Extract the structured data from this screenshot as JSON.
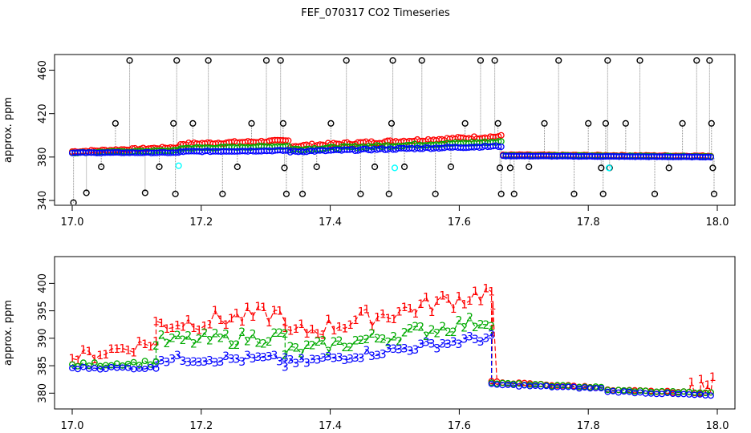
{
  "title": "FEF_070317  CO2 Timeseries",
  "colors": {
    "series1": "#ff0000",
    "series2": "#00aa00",
    "series3": "#0000ff",
    "outlier": "#000000",
    "flag": "#00ffff",
    "stick": "#888888"
  },
  "chart_data": [
    {
      "type": "scatter",
      "panel": "top",
      "title": "",
      "xlabel": "",
      "ylabel": "approx. ppm",
      "xlim": [
        17.0,
        18.0
      ],
      "ylim": [
        340,
        470
      ],
      "x_ticks": [
        "17.0",
        "17.2",
        "17.4",
        "17.6",
        "17.8",
        "18.0"
      ],
      "y_ticks": [
        "340",
        "380",
        "420",
        "460"
      ],
      "series": [
        {
          "name": "1",
          "color": "red",
          "segments": [
            {
              "x0": 17.0,
              "x1": 17.165,
              "y0": 385,
              "y1": 389,
              "jitter": 1.5
            },
            {
              "x0": 17.168,
              "x1": 17.335,
              "y0": 392,
              "y1": 395,
              "jitter": 2
            },
            {
              "x0": 17.338,
              "x1": 17.665,
              "y0": 390,
              "y1": 399,
              "jitter": 2.5
            },
            {
              "x0": 17.668,
              "x1": 17.99,
              "y0": 382,
              "y1": 381,
              "jitter": 0.8
            }
          ]
        },
        {
          "name": "2",
          "color": "green",
          "segments": [
            {
              "x0": 17.0,
              "x1": 17.165,
              "y0": 384,
              "y1": 386,
              "jitter": 1
            },
            {
              "x0": 17.168,
              "x1": 17.335,
              "y0": 388,
              "y1": 390,
              "jitter": 1.5
            },
            {
              "x0": 17.338,
              "x1": 17.665,
              "y0": 387,
              "y1": 394,
              "jitter": 2
            },
            {
              "x0": 17.668,
              "x1": 17.99,
              "y0": 381.5,
              "y1": 380.5,
              "jitter": 0.6
            }
          ]
        },
        {
          "name": "3",
          "color": "blue",
          "segments": [
            {
              "x0": 17.0,
              "x1": 17.165,
              "y0": 384,
              "y1": 384,
              "jitter": 0.6
            },
            {
              "x0": 17.168,
              "x1": 17.335,
              "y0": 385,
              "y1": 386,
              "jitter": 1
            },
            {
              "x0": 17.338,
              "x1": 17.665,
              "y0": 385,
              "y1": 390,
              "jitter": 1.5
            },
            {
              "x0": 17.668,
              "x1": 17.99,
              "y0": 381,
              "y1": 380,
              "jitter": 0.4
            }
          ]
        }
      ],
      "outliers": [
        [
          17.002,
          338
        ],
        [
          17.022,
          347
        ],
        [
          17.045,
          371
        ],
        [
          17.067,
          411
        ],
        [
          17.089,
          469
        ],
        [
          17.113,
          347
        ],
        [
          17.135,
          371
        ],
        [
          17.157,
          411
        ],
        [
          17.162,
          469
        ],
        [
          17.16,
          346
        ],
        [
          17.187,
          411
        ],
        [
          17.211,
          469
        ],
        [
          17.233,
          346
        ],
        [
          17.256,
          371
        ],
        [
          17.278,
          411
        ],
        [
          17.301,
          469
        ],
        [
          17.323,
          469
        ],
        [
          17.327,
          411
        ],
        [
          17.329,
          370
        ],
        [
          17.332,
          346
        ],
        [
          17.357,
          346
        ],
        [
          17.379,
          371
        ],
        [
          17.401,
          411
        ],
        [
          17.425,
          469
        ],
        [
          17.447,
          346
        ],
        [
          17.469,
          371
        ],
        [
          17.491,
          346
        ],
        [
          17.495,
          411
        ],
        [
          17.497,
          469
        ],
        [
          17.515,
          371
        ],
        [
          17.542,
          469
        ],
        [
          17.563,
          346
        ],
        [
          17.587,
          371
        ],
        [
          17.609,
          411
        ],
        [
          17.633,
          469
        ],
        [
          17.655,
          469
        ],
        [
          17.66,
          411
        ],
        [
          17.663,
          370
        ],
        [
          17.665,
          346
        ],
        [
          17.679,
          370
        ],
        [
          17.685,
          346
        ],
        [
          17.708,
          371
        ],
        [
          17.732,
          411
        ],
        [
          17.754,
          469
        ],
        [
          17.778,
          346
        ],
        [
          17.8,
          411
        ],
        [
          17.82,
          370
        ],
        [
          17.823,
          346
        ],
        [
          17.827,
          411
        ],
        [
          17.83,
          469
        ],
        [
          17.833,
          370
        ],
        [
          17.858,
          411
        ],
        [
          17.88,
          469
        ],
        [
          17.903,
          346
        ],
        [
          17.925,
          370
        ],
        [
          17.946,
          411
        ],
        [
          17.968,
          469
        ],
        [
          17.988,
          469
        ],
        [
          17.991,
          411
        ],
        [
          17.993,
          370
        ],
        [
          17.995,
          346
        ]
      ],
      "flags": [
        [
          17.165,
          372
        ],
        [
          17.5,
          370
        ],
        [
          17.832,
          370
        ]
      ]
    },
    {
      "type": "line",
      "panel": "bottom",
      "title": "",
      "xlabel": "",
      "ylabel": "approx. ppm",
      "xlim": [
        17.0,
        18.0
      ],
      "ylim": [
        378,
        404
      ],
      "x_ticks": [
        "17.0",
        "17.2",
        "17.4",
        "17.6",
        "17.8",
        "18.0"
      ],
      "y_ticks": [
        "380",
        "385",
        "390",
        "395",
        "400"
      ],
      "series": [
        {
          "name": "1",
          "label": "1",
          "color": "red",
          "segments": [
            {
              "x0": 17.0,
              "x1": 17.13,
              "y0": 386,
              "y1": 389,
              "amp": 2.5
            },
            {
              "x0": 17.13,
              "x1": 17.33,
              "y0": 392,
              "y1": 394,
              "amp": 3.5
            },
            {
              "x0": 17.33,
              "x1": 17.65,
              "y0": 390,
              "y1": 398,
              "amp": 3.5
            },
            {
              "x0": 17.65,
              "x1": 17.82,
              "y0": 382,
              "y1": 381,
              "amp": 0.3
            },
            {
              "x0": 17.83,
              "x1": 17.99,
              "y0": 380.5,
              "y1": 380,
              "amp": 0.3
            }
          ],
          "spikes": [
            [
              17.652,
              396
            ],
            [
              17.96,
              382
            ],
            [
              17.975,
              382.5
            ],
            [
              17.985,
              381.5
            ],
            [
              17.993,
              383
            ]
          ]
        },
        {
          "name": "2",
          "label": "2",
          "color": "green",
          "segments": [
            {
              "x0": 17.0,
              "x1": 17.13,
              "y0": 385,
              "y1": 385.5,
              "amp": 0.8
            },
            {
              "x0": 17.13,
              "x1": 17.33,
              "y0": 389,
              "y1": 390,
              "amp": 2.5
            },
            {
              "x0": 17.33,
              "x1": 17.65,
              "y0": 387,
              "y1": 393,
              "amp": 2.5
            },
            {
              "x0": 17.65,
              "x1": 17.82,
              "y0": 381.8,
              "y1": 381,
              "amp": 0.3
            },
            {
              "x0": 17.83,
              "x1": 17.99,
              "y0": 380.5,
              "y1": 380,
              "amp": 0.3
            }
          ]
        },
        {
          "name": "3",
          "label": "3",
          "color": "blue",
          "segments": [
            {
              "x0": 17.0,
              "x1": 17.13,
              "y0": 384.5,
              "y1": 384.5,
              "amp": 0.5
            },
            {
              "x0": 17.13,
              "x1": 17.33,
              "y0": 386,
              "y1": 386,
              "amp": 1.5
            },
            {
              "x0": 17.33,
              "x1": 17.65,
              "y0": 385,
              "y1": 390,
              "amp": 1.5
            },
            {
              "x0": 17.65,
              "x1": 17.82,
              "y0": 381.5,
              "y1": 380.8,
              "amp": 0.3
            },
            {
              "x0": 17.83,
              "x1": 17.99,
              "y0": 380.3,
              "y1": 379.5,
              "amp": 0.3
            }
          ]
        }
      ]
    }
  ]
}
